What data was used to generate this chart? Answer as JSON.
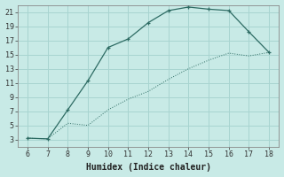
{
  "xlabel": "Humidex (Indice chaleur)",
  "background_color": "#c8eae6",
  "grid_color": "#a8d4d0",
  "line_color": "#2d6b63",
  "xlim_min": 5.5,
  "xlim_max": 18.5,
  "ylim_min": 2.0,
  "ylim_max": 22.0,
  "xticks": [
    6,
    7,
    8,
    9,
    10,
    11,
    12,
    13,
    14,
    15,
    16,
    17,
    18
  ],
  "yticks": [
    3,
    5,
    7,
    9,
    11,
    13,
    15,
    17,
    19,
    21
  ],
  "line1_x": [
    6,
    7,
    8,
    9,
    10,
    11,
    12,
    13,
    14,
    15,
    16,
    17,
    18
  ],
  "line1_y": [
    3.2,
    3.1,
    7.2,
    11.3,
    16.0,
    17.2,
    19.5,
    21.2,
    21.7,
    21.4,
    21.2,
    18.2,
    15.3
  ],
  "line2_x": [
    6,
    7,
    8,
    9,
    10,
    11,
    12,
    13,
    14,
    15,
    16,
    17,
    18
  ],
  "line2_y": [
    3.2,
    3.1,
    5.3,
    5.0,
    7.2,
    8.7,
    9.8,
    11.5,
    13.0,
    14.2,
    15.2,
    14.8,
    15.3
  ],
  "tick_fontsize": 6,
  "xlabel_fontsize": 7
}
